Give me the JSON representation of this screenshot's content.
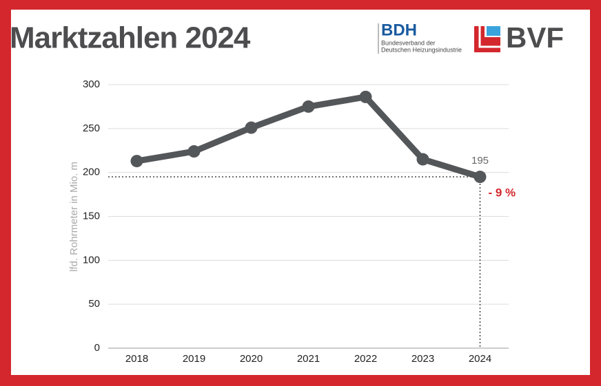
{
  "chart_data": {
    "type": "line",
    "title": "Marktzahlen 2024",
    "y_label": "lfd. Rohrmeter in Mio. m",
    "categories": [
      "2018",
      "2019",
      "2020",
      "2021",
      "2022",
      "2023",
      "2024"
    ],
    "values": [
      213,
      224,
      251,
      275,
      286,
      215,
      195
    ],
    "color": "#54575a",
    "ylim": [
      0,
      300
    ],
    "yticks": [
      0,
      50,
      100,
      150,
      200,
      250,
      300
    ],
    "grid": true,
    "annotation": "- 9 %",
    "annotation_color": "#d3272d"
  },
  "logos": {
    "bdh": "BDH",
    "bdh_line1": "Bundesverband der",
    "bdh_line2": "Deutschen Heizungsindustrie",
    "bvf": "BVF"
  }
}
